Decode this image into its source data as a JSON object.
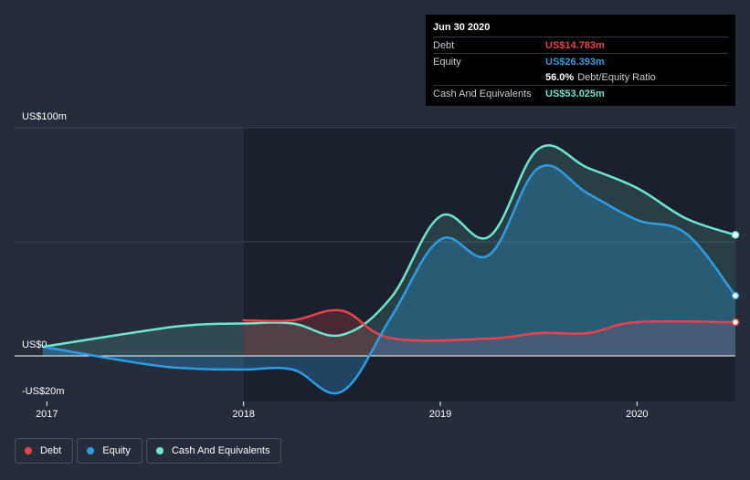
{
  "colors": {
    "debt": "#e8434c",
    "equity": "#2f9de4",
    "cash": "#6ee6cf",
    "background": "#252c3a",
    "plot_background": "#1a202c"
  },
  "tooltip": {
    "date": "Jun 30 2020",
    "debt_label": "Debt",
    "debt_value": "US$14.783m",
    "equity_label": "Equity",
    "equity_value": "US$26.393m",
    "ratio_value": "56.0%",
    "ratio_label": "Debt/Equity Ratio",
    "cash_label": "Cash And Equivalents",
    "cash_value": "US$53.025m"
  },
  "legend": [
    {
      "name": "Debt",
      "color": "#e8434c"
    },
    {
      "name": "Equity",
      "color": "#2f9de4"
    },
    {
      "name": "Cash And Equivalents",
      "color": "#6ee6cf"
    }
  ],
  "chart_data": {
    "type": "area",
    "title": "",
    "xlabel": "",
    "ylabel": "",
    "x_range": [
      2016.98,
      2020.5
    ],
    "y_range": [
      -20,
      100
    ],
    "y_tick_labels": [
      {
        "value": 100,
        "label": "US$100m"
      },
      {
        "value": 0,
        "label": "US$0"
      },
      {
        "value": -20,
        "label": "-US$20m"
      }
    ],
    "x_tick_labels": [
      {
        "value": 2017,
        "label": "2017"
      },
      {
        "value": 2018,
        "label": "2018"
      },
      {
        "value": 2019,
        "label": "2019"
      },
      {
        "value": 2020,
        "label": "2020"
      }
    ],
    "gridlines": [
      100,
      50
    ],
    "highlight_start": 2016.98,
    "highlight_end": 2018.0,
    "series": [
      {
        "name": "Debt",
        "key": "debt",
        "points": [
          [
            2018.0,
            15.6
          ],
          [
            2018.25,
            15.6
          ],
          [
            2018.5,
            19.8
          ],
          [
            2018.75,
            7.8
          ],
          [
            2019.25,
            7.6
          ],
          [
            2019.5,
            10.0
          ],
          [
            2019.75,
            10.0
          ],
          [
            2020.0,
            14.8
          ],
          [
            2020.5,
            14.78
          ]
        ]
      },
      {
        "name": "Equity",
        "key": "equity",
        "points": [
          [
            2016.98,
            4.0
          ],
          [
            2017.5,
            -3.6
          ],
          [
            2017.75,
            -5.6
          ],
          [
            2018.0,
            -6.0
          ],
          [
            2018.25,
            -6.0
          ],
          [
            2018.5,
            -15.6
          ],
          [
            2018.75,
            17.0
          ],
          [
            2019.0,
            51.0
          ],
          [
            2019.25,
            44.4
          ],
          [
            2019.5,
            82.4
          ],
          [
            2019.75,
            71.2
          ],
          [
            2020.0,
            59.6
          ],
          [
            2020.25,
            53.6
          ],
          [
            2020.5,
            26.39
          ]
        ]
      },
      {
        "name": "Cash And Equivalents",
        "key": "cash",
        "points": [
          [
            2016.98,
            4.0
          ],
          [
            2017.5,
            11.0
          ],
          [
            2017.75,
            13.6
          ],
          [
            2018.0,
            14.2
          ],
          [
            2018.25,
            14.2
          ],
          [
            2018.5,
            9.2
          ],
          [
            2018.75,
            25.6
          ],
          [
            2019.0,
            61.2
          ],
          [
            2019.25,
            52.4
          ],
          [
            2019.5,
            90.8
          ],
          [
            2019.75,
            82.4
          ],
          [
            2020.0,
            73.6
          ],
          [
            2020.25,
            60.2
          ],
          [
            2020.5,
            53.03
          ]
        ]
      }
    ]
  }
}
